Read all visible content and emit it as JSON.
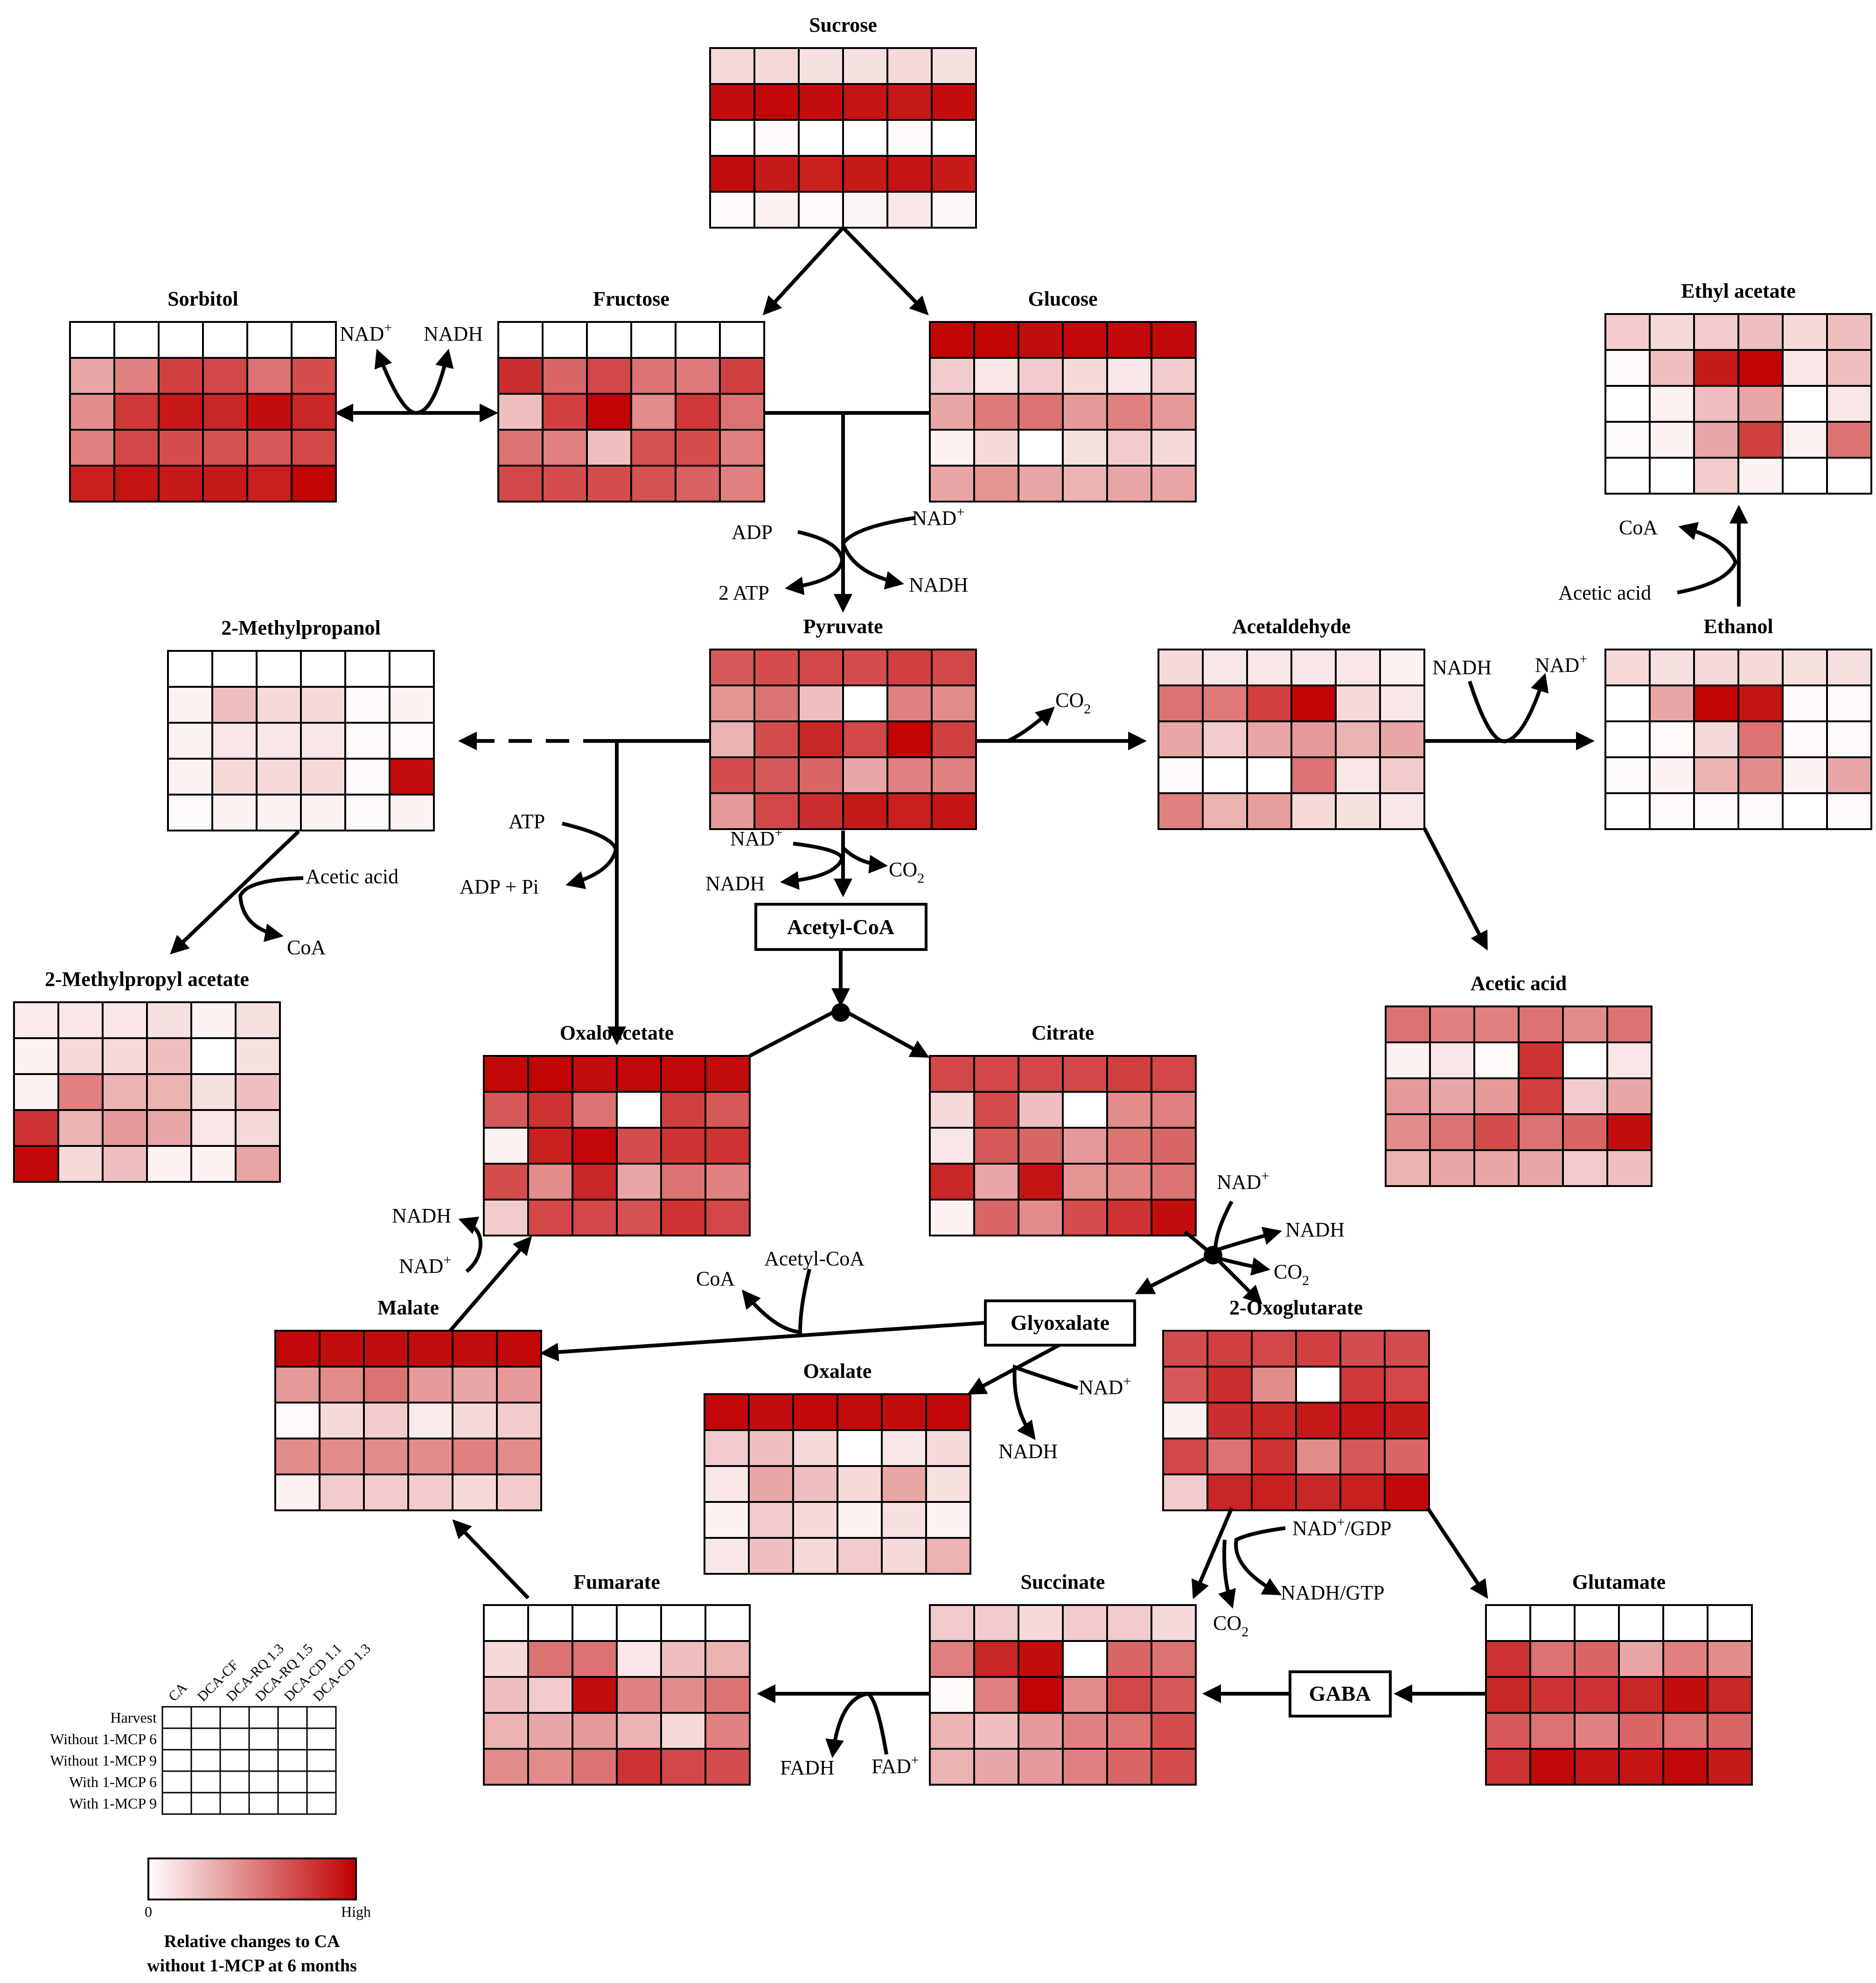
{
  "colors": {
    "low": "#ffffff",
    "high": "#c00000",
    "grid": "#000000"
  },
  "metabolites": [
    {
      "id": "sucrose",
      "title": "Sucrose",
      "values": [
        [
          0.15,
          0.15,
          0.12,
          0.12,
          0.15,
          0.12
        ],
        [
          0.95,
          0.97,
          0.95,
          0.92,
          0.9,
          0.95
        ],
        [
          0.0,
          0.02,
          0.0,
          0.0,
          0.02,
          0.0
        ],
        [
          0.95,
          0.9,
          0.88,
          0.9,
          0.92,
          0.9
        ],
        [
          0.02,
          0.05,
          0.02,
          0.04,
          0.1,
          0.03
        ]
      ]
    },
    {
      "id": "sorbitol",
      "title": "Sorbitol",
      "values": [
        [
          0,
          0,
          0,
          0,
          0,
          0
        ],
        [
          0.35,
          0.5,
          0.75,
          0.72,
          0.55,
          0.7
        ],
        [
          0.45,
          0.78,
          0.9,
          0.85,
          0.95,
          0.85
        ],
        [
          0.5,
          0.72,
          0.7,
          0.68,
          0.65,
          0.72
        ],
        [
          0.88,
          0.92,
          0.9,
          0.9,
          0.88,
          0.98
        ]
      ]
    },
    {
      "id": "fructose",
      "title": "Fructose",
      "values": [
        [
          0,
          0,
          0,
          0,
          0,
          0
        ],
        [
          0.82,
          0.6,
          0.72,
          0.55,
          0.52,
          0.75
        ],
        [
          0.25,
          0.75,
          0.98,
          0.45,
          0.78,
          0.55
        ],
        [
          0.55,
          0.5,
          0.25,
          0.68,
          0.7,
          0.5
        ],
        [
          0.72,
          0.7,
          0.7,
          0.68,
          0.62,
          0.5
        ]
      ]
    },
    {
      "id": "glucose",
      "title": "Glucose",
      "values": [
        [
          0.98,
          0.98,
          0.95,
          0.97,
          0.97,
          0.97
        ],
        [
          0.2,
          0.1,
          0.2,
          0.15,
          0.1,
          0.2
        ],
        [
          0.35,
          0.52,
          0.55,
          0.4,
          0.5,
          0.4
        ],
        [
          0.05,
          0.15,
          0.0,
          0.12,
          0.2,
          0.15
        ],
        [
          0.35,
          0.42,
          0.35,
          0.3,
          0.35,
          0.35
        ]
      ]
    },
    {
      "id": "ethyl_acetate",
      "title": "Ethyl acetate",
      "values": [
        [
          0.2,
          0.15,
          0.2,
          0.25,
          0.15,
          0.25
        ],
        [
          0.02,
          0.25,
          0.9,
          0.98,
          0.1,
          0.25
        ],
        [
          0.0,
          0.05,
          0.25,
          0.35,
          0.0,
          0.1
        ],
        [
          0.02,
          0.05,
          0.35,
          0.75,
          0.05,
          0.55
        ],
        [
          0.0,
          0.0,
          0.2,
          0.05,
          0.0,
          0.0
        ]
      ]
    },
    {
      "id": "methylpropanol",
      "title": "2-Methylpropanol",
      "values": [
        [
          0,
          0,
          0,
          0,
          0,
          0
        ],
        [
          0.05,
          0.25,
          0.15,
          0.15,
          0.02,
          0.05
        ],
        [
          0.05,
          0.1,
          0.1,
          0.1,
          0.02,
          0.02
        ],
        [
          0.05,
          0.15,
          0.15,
          0.15,
          0.02,
          0.95
        ],
        [
          0.02,
          0.05,
          0.05,
          0.05,
          0.02,
          0.05
        ]
      ]
    },
    {
      "id": "pyruvate",
      "title": "Pyruvate",
      "values": [
        [
          0.65,
          0.7,
          0.72,
          0.7,
          0.75,
          0.72
        ],
        [
          0.42,
          0.55,
          0.25,
          0.0,
          0.5,
          0.45
        ],
        [
          0.3,
          0.7,
          0.85,
          0.72,
          0.98,
          0.75
        ],
        [
          0.7,
          0.65,
          0.6,
          0.35,
          0.5,
          0.5
        ],
        [
          0.4,
          0.72,
          0.82,
          0.9,
          0.88,
          0.92
        ]
      ]
    },
    {
      "id": "acetaldehyde",
      "title": "Acetaldehyde",
      "values": [
        [
          0.15,
          0.1,
          0.1,
          0.1,
          0.1,
          0.05
        ],
        [
          0.55,
          0.52,
          0.75,
          0.98,
          0.15,
          0.1
        ],
        [
          0.35,
          0.2,
          0.35,
          0.4,
          0.3,
          0.35
        ],
        [
          0.02,
          0.0,
          0.0,
          0.55,
          0.1,
          0.2
        ],
        [
          0.5,
          0.3,
          0.38,
          0.15,
          0.12,
          0.1
        ]
      ]
    },
    {
      "id": "ethanol",
      "title": "Ethanol",
      "values": [
        [
          0.15,
          0.12,
          0.15,
          0.15,
          0.12,
          0.12
        ],
        [
          0.0,
          0.35,
          0.98,
          0.92,
          0.02,
          0.02
        ],
        [
          0.0,
          0.02,
          0.15,
          0.55,
          0.02,
          0.02
        ],
        [
          0.02,
          0.05,
          0.3,
          0.45,
          0.05,
          0.35
        ],
        [
          0.0,
          0.02,
          0.02,
          0.02,
          0.0,
          0.02
        ]
      ]
    },
    {
      "id": "methylpropyl_acetate",
      "title": "2-Methylpropyl  acetate",
      "values": [
        [
          0.08,
          0.1,
          0.1,
          0.12,
          0.05,
          0.12
        ],
        [
          0.05,
          0.15,
          0.15,
          0.25,
          0.0,
          0.12
        ],
        [
          0.05,
          0.5,
          0.3,
          0.3,
          0.12,
          0.25
        ],
        [
          0.8,
          0.3,
          0.4,
          0.35,
          0.1,
          0.15
        ],
        [
          0.97,
          0.15,
          0.25,
          0.05,
          0.05,
          0.35
        ]
      ]
    },
    {
      "id": "oxaloacetate",
      "title": "Oxaloacetate",
      "values": [
        [
          0.97,
          0.98,
          0.95,
          0.97,
          0.97,
          0.95
        ],
        [
          0.65,
          0.8,
          0.55,
          0.0,
          0.75,
          0.65
        ],
        [
          0.05,
          0.88,
          0.97,
          0.7,
          0.8,
          0.8
        ],
        [
          0.7,
          0.45,
          0.85,
          0.35,
          0.55,
          0.5
        ],
        [
          0.2,
          0.72,
          0.72,
          0.68,
          0.8,
          0.72
        ]
      ]
    },
    {
      "id": "citrate",
      "title": "Citrate",
      "values": [
        [
          0.72,
          0.72,
          0.72,
          0.72,
          0.75,
          0.72
        ],
        [
          0.15,
          0.7,
          0.25,
          0.0,
          0.45,
          0.5
        ],
        [
          0.1,
          0.65,
          0.6,
          0.4,
          0.55,
          0.6
        ],
        [
          0.85,
          0.35,
          0.92,
          0.42,
          0.48,
          0.55
        ],
        [
          0.05,
          0.6,
          0.45,
          0.7,
          0.8,
          0.95
        ]
      ]
    },
    {
      "id": "acetic_acid",
      "title": "Acetic acid",
      "values": [
        [
          0.55,
          0.5,
          0.5,
          0.55,
          0.45,
          0.55
        ],
        [
          0.05,
          0.1,
          0.02,
          0.8,
          0.0,
          0.1
        ],
        [
          0.4,
          0.35,
          0.4,
          0.75,
          0.2,
          0.35
        ],
        [
          0.45,
          0.55,
          0.7,
          0.55,
          0.6,
          0.95
        ],
        [
          0.3,
          0.35,
          0.35,
          0.35,
          0.2,
          0.25
        ]
      ]
    },
    {
      "id": "malate",
      "title": "Malate",
      "values": [
        [
          0.97,
          0.95,
          0.95,
          0.95,
          0.95,
          0.97
        ],
        [
          0.4,
          0.45,
          0.55,
          0.4,
          0.35,
          0.4
        ],
        [
          0.02,
          0.15,
          0.2,
          0.08,
          0.15,
          0.2
        ],
        [
          0.45,
          0.45,
          0.45,
          0.45,
          0.5,
          0.45
        ],
        [
          0.05,
          0.2,
          0.2,
          0.2,
          0.15,
          0.2
        ]
      ]
    },
    {
      "id": "oxalate",
      "title": "Oxalate",
      "values": [
        [
          0.97,
          0.95,
          0.97,
          0.95,
          0.95,
          0.97
        ],
        [
          0.2,
          0.25,
          0.15,
          0.0,
          0.1,
          0.15
        ],
        [
          0.1,
          0.35,
          0.25,
          0.15,
          0.35,
          0.12
        ],
        [
          0.05,
          0.2,
          0.15,
          0.05,
          0.12,
          0.05
        ],
        [
          0.1,
          0.25,
          0.15,
          0.2,
          0.15,
          0.3
        ]
      ]
    },
    {
      "id": "oxoglutarate",
      "title": "2-Oxoglutarate",
      "values": [
        [
          0.7,
          0.75,
          0.72,
          0.75,
          0.7,
          0.7
        ],
        [
          0.65,
          0.82,
          0.45,
          0.0,
          0.78,
          0.72
        ],
        [
          0.05,
          0.82,
          0.85,
          0.9,
          0.92,
          0.9
        ],
        [
          0.72,
          0.55,
          0.8,
          0.45,
          0.65,
          0.6
        ],
        [
          0.2,
          0.85,
          0.88,
          0.85,
          0.88,
          0.97
        ]
      ]
    },
    {
      "id": "fumarate",
      "title": "Fumarate",
      "values": [
        [
          0,
          0,
          0,
          0,
          0,
          0
        ],
        [
          0.15,
          0.55,
          0.55,
          0.1,
          0.25,
          0.3
        ],
        [
          0.25,
          0.2,
          0.95,
          0.5,
          0.45,
          0.55
        ],
        [
          0.3,
          0.35,
          0.4,
          0.3,
          0.15,
          0.5
        ],
        [
          0.45,
          0.45,
          0.55,
          0.8,
          0.72,
          0.7
        ]
      ]
    },
    {
      "id": "succinate",
      "title": "Succinate",
      "values": [
        [
          0.2,
          0.2,
          0.15,
          0.2,
          0.2,
          0.15
        ],
        [
          0.5,
          0.85,
          0.95,
          0.0,
          0.6,
          0.55
        ],
        [
          0.02,
          0.5,
          0.98,
          0.45,
          0.72,
          0.65
        ],
        [
          0.3,
          0.25,
          0.4,
          0.5,
          0.55,
          0.7
        ],
        [
          0.3,
          0.35,
          0.4,
          0.5,
          0.6,
          0.7
        ]
      ]
    },
    {
      "id": "glutamate",
      "title": "Glutamate",
      "values": [
        [
          0,
          0,
          0,
          0,
          0,
          0
        ],
        [
          0.8,
          0.55,
          0.6,
          0.35,
          0.5,
          0.45
        ],
        [
          0.85,
          0.8,
          0.8,
          0.85,
          0.95,
          0.85
        ],
        [
          0.65,
          0.55,
          0.5,
          0.6,
          0.55,
          0.6
        ],
        [
          0.8,
          0.97,
          0.92,
          0.92,
          0.97,
          0.9
        ]
      ]
    }
  ],
  "boxes": {
    "acetyl_coa": "Acetyl-CoA",
    "glyoxalate": "Glyoxalate",
    "gaba": "GABA"
  },
  "cofactors": {
    "nad_plus_1": "NAD",
    "nadh_1": "NADH",
    "adp_1": "ADP",
    "atp_2": "2 ATP",
    "nad_plus_2": "NAD",
    "nadh_2": "NADH",
    "co2_1": "CO",
    "nadh_3": "NADH",
    "nad_plus_3": "NAD",
    "coa_1": "CoA",
    "acetic_acid_1": "Acetic acid",
    "atp_1": "ATP",
    "adp_pi": "ADP + Pi",
    "nad_plus_4": "NAD",
    "nadh_4": "NADH",
    "co2_2": "CO",
    "acetic_acid_2": "Acetic acid",
    "coa_2": "CoA",
    "nadh_5": "NADH",
    "nad_plus_5": "NAD",
    "coa_3": "CoA",
    "acetyl_coa_2": "Acetyl-CoA",
    "nad_plus_6": "NAD",
    "nadh_6": "NADH",
    "co2_3": "CO",
    "nad_plus_7": "NAD",
    "nadh_7": "NADH",
    "nad_gdp": "NAD",
    "gdp_suffix": "/GDP",
    "nadh_gtp": "NADH/GTP",
    "co2_4": "CO",
    "fadh": "FADH",
    "fad_plus": "FAD",
    "plus": "+",
    "two": "2"
  },
  "legend": {
    "columns": [
      "CA",
      "DCA-CF",
      "DCA-RQ 1.3",
      "DCA-RQ 1.5",
      "DCA-CD 1.1",
      "DCA-CD 1.3"
    ],
    "rows": [
      "Harvest",
      "Without 1-MCP  6",
      "Without 1-MCP  9",
      "With 1-MCP  6",
      "With 1-MCP  9"
    ],
    "scale_min": "0",
    "scale_max": "High",
    "caption_line1": "Relative changes to CA",
    "caption_line2": "without 1-MCP at 6 months"
  }
}
